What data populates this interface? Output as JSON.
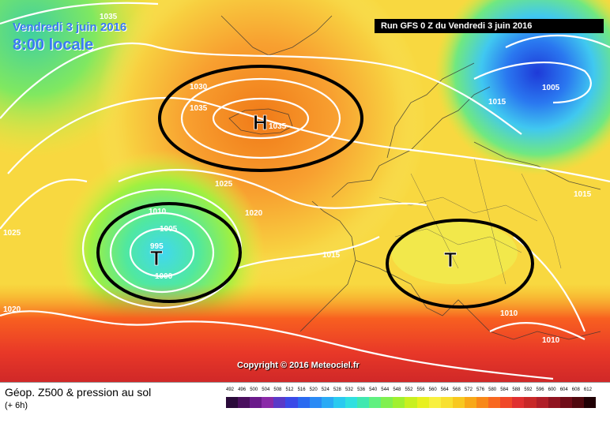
{
  "header": {
    "date": "Vendredi 3 juin 2016",
    "time": "8:00 locale",
    "run": "Run GFS 0 Z du Vendredi 3 juin 2016"
  },
  "copyright": "Copyright © 2016 Meteociel.fr",
  "footer": {
    "title": "Géop. Z500 & pression au sol",
    "subtitle": "(+ 6h)"
  },
  "pressure_labels": [
    "1035",
    "1030",
    "1035",
    "1035",
    "1025",
    "1020",
    "1010",
    "1005",
    "995",
    "1000",
    "1025",
    "1015",
    "1020",
    "1015",
    "1005",
    "1015",
    "1010",
    "1010"
  ],
  "systems": [
    {
      "symbol": "H",
      "name": "high"
    },
    {
      "symbol": "T",
      "name": "low-atlantic"
    },
    {
      "symbol": "T",
      "name": "low-central-europe"
    }
  ],
  "scale": {
    "ticks": [
      "492",
      "496",
      "500",
      "504",
      "508",
      "512",
      "516",
      "520",
      "524",
      "528",
      "532",
      "536",
      "540",
      "544",
      "548",
      "552",
      "556",
      "560",
      "564",
      "568",
      "572",
      "576",
      "580",
      "584",
      "588",
      "592",
      "596",
      "600",
      "604",
      "608",
      "612"
    ],
    "colors": [
      "#2a0a3a",
      "#4a0f5e",
      "#6a1a8a",
      "#8a2aa8",
      "#5a3ac8",
      "#3a4ae8",
      "#2a6af0",
      "#2a8af5",
      "#2aaaf5",
      "#2acaf0",
      "#30e0e0",
      "#40e8b0",
      "#60f080",
      "#80f050",
      "#a0f030",
      "#c8f020",
      "#e8f020",
      "#f8f040",
      "#f8e030",
      "#f8c820",
      "#f8a818",
      "#f88818",
      "#f86820",
      "#f04828",
      "#e03030",
      "#c82828",
      "#b01e28",
      "#901420",
      "#700c18",
      "#50080e",
      "#200004"
    ]
  }
}
